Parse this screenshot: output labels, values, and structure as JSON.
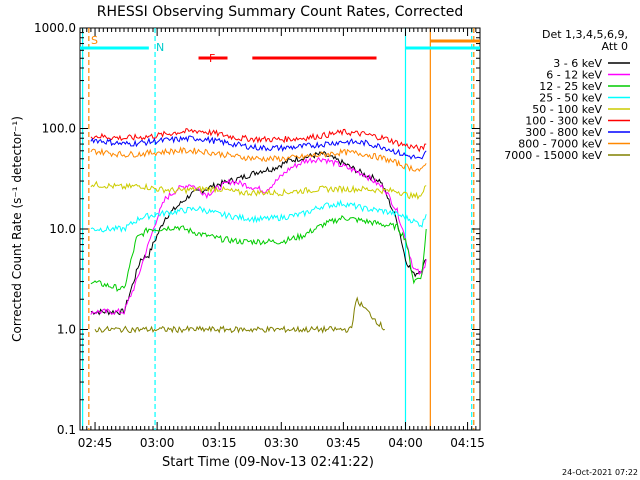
{
  "chart_data": {
    "type": "line",
    "title": "RHESSI Observing Summary Count Rates, Corrected",
    "xlabel": "Start Time (09-Nov-13 02:41:22)",
    "ylabel": "Corrected Count Rate (s⁻¹ detector⁻¹)",
    "y_scale": "log",
    "ylim": [
      0.1,
      1000.0
    ],
    "xlim": [
      "02:41:22",
      "04:18"
    ],
    "x_ticks": [
      "02:45",
      "03:00",
      "03:15",
      "03:30",
      "03:45",
      "04:00",
      "04:15"
    ],
    "y_ticks": [
      "0.1",
      "1.0",
      "10.0",
      "100.0",
      "1000.0"
    ],
    "legend": {
      "placement": "right",
      "header": [
        "Det 1,3,4,5,6,9,",
        "Att 0"
      ],
      "entries": [
        "3 - 6 keV",
        "6 - 12 keV",
        "12 - 25 keV",
        "25 - 50 keV",
        "50 - 100 keV",
        "100 - 300 keV",
        "300 - 800 keV",
        "800 - 7000 keV",
        "7000 - 15000 keV"
      ]
    },
    "annotations": {
      "saa_label": "S",
      "night_label": "N",
      "flare_label": "F"
    },
    "footer_date": "24-Oct-2021 07:22",
    "series": [
      {
        "name": "3 - 6 keV",
        "color": "#000000",
        "x": [
          "02:44",
          "02:52",
          "02:56",
          "02:58",
          "02:59",
          "03:02",
          "03:08",
          "03:15",
          "03:20",
          "03:25",
          "03:28",
          "03:32",
          "03:36",
          "03:40",
          "03:45",
          "03:50",
          "03:54",
          "03:58",
          "04:00",
          "04:02",
          "04:04",
          "04:05"
        ],
        "y": [
          1.5,
          1.5,
          5.0,
          5.5,
          7.0,
          13,
          22,
          28,
          32,
          38,
          40,
          48,
          52,
          56,
          45,
          35,
          30,
          12,
          5,
          3.5,
          4,
          5
        ]
      },
      {
        "name": "6 - 12 keV",
        "color": "#ff00ff",
        "x": [
          "02:44",
          "02:52",
          "02:55",
          "03:00",
          "03:02",
          "03:05",
          "03:08",
          "03:12",
          "03:15",
          "03:18",
          "03:22",
          "03:26",
          "03:28",
          "03:32",
          "03:36",
          "03:40",
          "03:45",
          "03:50",
          "03:55",
          "03:58",
          "04:00",
          "04:02",
          "04:04",
          "04:05"
        ],
        "y": [
          1.5,
          1.5,
          3,
          13,
          20,
          25,
          28,
          22,
          26,
          30,
          27,
          24,
          28,
          40,
          48,
          50,
          42,
          35,
          25,
          15,
          8,
          4,
          3.5,
          5
        ]
      },
      {
        "name": "12 - 25 keV",
        "color": "#00cc00",
        "x": [
          "02:44",
          "02:52",
          "02:55",
          "02:58",
          "03:00",
          "03:05",
          "03:10",
          "03:15",
          "03:20",
          "03:25",
          "03:30",
          "03:35",
          "03:40",
          "03:45",
          "03:50",
          "03:55",
          "03:58",
          "04:00",
          "04:02",
          "04:04",
          "04:05"
        ],
        "y": [
          3,
          2.5,
          8,
          10,
          10,
          10.5,
          9,
          8,
          7.5,
          7.5,
          7.5,
          8.5,
          11,
          13,
          12,
          11,
          10.5,
          8,
          3,
          3.5,
          10
        ]
      },
      {
        "name": "25 - 50 keV",
        "color": "#00ffff",
        "x": [
          "02:44",
          "02:52",
          "02:56",
          "03:00",
          "03:05",
          "03:10",
          "03:15",
          "03:20",
          "03:25",
          "03:30",
          "03:35",
          "03:40",
          "03:45",
          "03:50",
          "03:55",
          "03:58",
          "04:00",
          "04:02",
          "04:04",
          "04:05"
        ],
        "y": [
          10,
          10,
          13,
          14,
          15,
          16,
          14,
          13,
          12.5,
          13,
          14,
          17,
          18,
          16,
          15,
          14,
          13,
          12,
          11,
          14
        ]
      },
      {
        "name": "50 - 100 keV",
        "color": "#cccc00",
        "x": [
          "02:44",
          "02:52",
          "02:56",
          "03:00",
          "03:05",
          "03:10",
          "03:15",
          "03:20",
          "03:25",
          "03:30",
          "03:35",
          "03:40",
          "03:45",
          "03:50",
          "03:55",
          "03:58",
          "04:00",
          "04:02",
          "04:04",
          "04:05"
        ],
        "y": [
          28,
          26,
          27,
          25,
          24,
          25,
          25,
          23,
          23,
          23,
          24,
          25,
          25,
          25,
          24,
          24,
          22,
          21,
          22,
          27
        ]
      },
      {
        "name": "100 - 300 keV",
        "color": "#ff0000",
        "x": [
          "02:44",
          "02:52",
          "02:56",
          "03:00",
          "03:05",
          "03:10",
          "03:15",
          "03:20",
          "03:25",
          "03:30",
          "03:35",
          "03:40",
          "03:45",
          "03:50",
          "03:55",
          "03:58",
          "04:00",
          "04:02",
          "04:04",
          "04:05"
        ],
        "y": [
          85,
          80,
          82,
          85,
          92,
          95,
          88,
          80,
          78,
          78,
          80,
          85,
          92,
          88,
          80,
          72,
          68,
          65,
          62,
          70
        ]
      },
      {
        "name": "300 - 800 keV",
        "color": "#0000ff",
        "x": [
          "02:44",
          "02:52",
          "02:56",
          "03:00",
          "03:05",
          "03:10",
          "03:15",
          "03:20",
          "03:25",
          "03:30",
          "03:35",
          "03:40",
          "03:45",
          "03:50",
          "03:55",
          "03:58",
          "04:00",
          "04:02",
          "04:04",
          "04:05"
        ],
        "y": [
          78,
          70,
          72,
          75,
          78,
          80,
          74,
          68,
          64,
          64,
          66,
          70,
          74,
          72,
          65,
          58,
          54,
          52,
          48,
          60
        ]
      },
      {
        "name": "800 - 7000 keV",
        "color": "#ff8800",
        "x": [
          "02:44",
          "02:52",
          "02:56",
          "03:00",
          "03:05",
          "03:10",
          "03:15",
          "03:20",
          "03:25",
          "03:30",
          "03:35",
          "03:40",
          "03:45",
          "03:50",
          "03:55",
          "03:58",
          "04:00",
          "04:02",
          "04:04",
          "04:05"
        ],
        "y": [
          60,
          55,
          56,
          58,
          60,
          60,
          56,
          52,
          50,
          50,
          52,
          55,
          58,
          56,
          50,
          45,
          42,
          40,
          38,
          45
        ]
      },
      {
        "name": "7000 - 15000 keV",
        "color": "#808000",
        "x": [
          "02:45",
          "02:52",
          "03:00",
          "03:07",
          "03:15",
          "03:21",
          "03:25",
          "03:28",
          "03:35",
          "03:40",
          "03:45",
          "03:47",
          "03:48",
          "03:55"
        ],
        "y": [
          1.0,
          1.0,
          1.0,
          1.0,
          1.0,
          1.0,
          1.0,
          1.0,
          1.0,
          1.0,
          1.0,
          1.0,
          2.0,
          1.0
        ]
      }
    ],
    "flags": {
      "saa_top": {
        "color": "#00ffff",
        "segments": [
          [
            "02:41:22",
            "02:58"
          ],
          [
            "04:00",
            "04:18"
          ]
        ]
      },
      "night_top": {
        "color": "#ff8800",
        "segments": [
          [
            "04:06",
            "04:18"
          ]
        ]
      },
      "flare": {
        "color": "#ff0000",
        "segments": [
          [
            "03:10",
            "03:17"
          ],
          [
            "03:23",
            "03:53"
          ]
        ]
      },
      "vlines": [
        {
          "time": "02:42:00",
          "color": "#00ffff",
          "style": "solid"
        },
        {
          "time": "02:43:30",
          "color": "#ff8800",
          "style": "dashed"
        },
        {
          "time": "02:59:30",
          "color": "#00ffff",
          "style": "dashed"
        },
        {
          "time": "04:00:00",
          "color": "#00ffff",
          "style": "solid"
        },
        {
          "time": "04:06:00",
          "color": "#ff8800",
          "style": "solid"
        },
        {
          "time": "04:16:00",
          "color": "#00ffff",
          "style": "dashed"
        },
        {
          "time": "04:16:30",
          "color": "#ff8800",
          "style": "dashed"
        }
      ]
    }
  }
}
